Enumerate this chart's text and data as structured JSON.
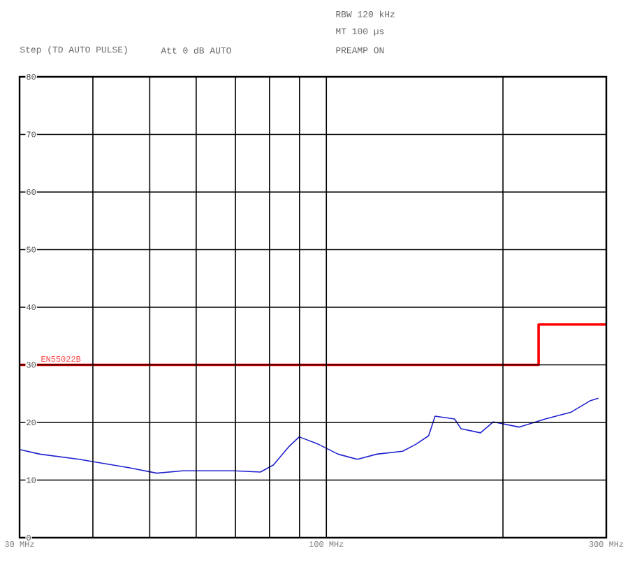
{
  "chart_data": {
    "type": "line",
    "xlim": [
      30,
      300
    ],
    "ylim": [
      0,
      80
    ],
    "log": "x",
    "xticks": [
      {
        "value": 30,
        "label": "30 MHz"
      },
      {
        "value": 40,
        "label": null
      },
      {
        "value": 50,
        "label": null
      },
      {
        "value": 60,
        "label": null
      },
      {
        "value": 70,
        "label": null
      },
      {
        "value": 80,
        "label": null
      },
      {
        "value": 90,
        "label": null
      },
      {
        "value": 100,
        "label": "100 MHz"
      },
      {
        "value": 200,
        "label": null
      },
      {
        "value": 300,
        "label": "300 MHz"
      }
    ],
    "yticks": [
      0,
      10,
      20,
      30,
      40,
      50,
      60,
      70,
      80
    ],
    "grid": true,
    "series": [
      {
        "color": "#2020d0",
        "x": [
          30,
          32.5,
          37.9,
          46.4,
          51.4,
          56.9,
          63,
          69.7,
          77.2,
          81.2,
          86.3,
          89.9,
          97,
          104.7,
          113,
          121.9,
          134.9,
          142,
          149.4,
          153.2,
          165.4,
          169.7,
          183.1,
          192.6,
          213.3,
          236.1,
          261.4,
          282,
          290.8
        ],
        "values": [
          15.3,
          14.5,
          13.6,
          12.1,
          11.2,
          11.6,
          11.6,
          11.6,
          11.4,
          12.6,
          15.8,
          17.5,
          16.2,
          14.5,
          13.6,
          14.5,
          15,
          16.2,
          17.7,
          21.1,
          20.6,
          18.9,
          18.2,
          20.1,
          19.2,
          20.6,
          21.8,
          23.8,
          24.2
        ]
      },
      {
        "color": "#ff0000",
        "x": [
          30,
          230,
          230,
          300
        ],
        "values": [
          30,
          30,
          37,
          37
        ]
      }
    ],
    "annotations": [
      "RBW 120 kHz",
      "MT 100 µs",
      "Step (TD AUTO PULSE)",
      "Att 0 dB AUTO",
      "PREAMP ON",
      {
        "text": "EN55022B",
        "x": 30,
        "y": 30
      }
    ]
  }
}
